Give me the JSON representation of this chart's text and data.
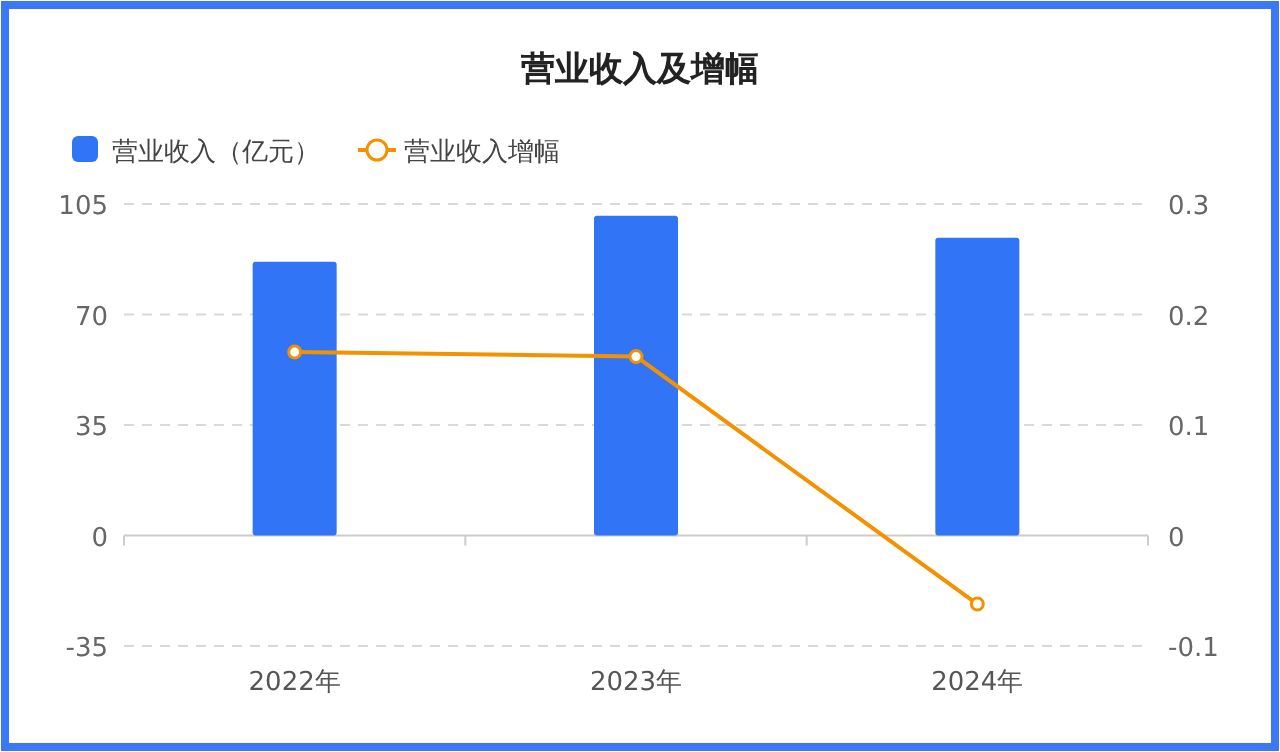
{
  "chart_data": {
    "type": "bar",
    "title": "营业收入及增幅",
    "categories": [
      "2022年",
      "2023年",
      "2024年"
    ],
    "series": [
      {
        "name": "营业收入（亿元）",
        "color": "#3274f6",
        "values": [
          86.7,
          101.3,
          94.3
        ]
      },
      {
        "name": "营业收入增幅",
        "type": "line",
        "axis": "y2",
        "color": "#f39200",
        "values": [
          0.166,
          0.162,
          -0.062
        ]
      }
    ],
    "ylim": [
      -35,
      105
    ],
    "yticks": [
      -35,
      0,
      35,
      70,
      105
    ],
    "y2lim": [
      -0.1,
      0.3
    ],
    "y2ticks": [
      -0.1,
      0,
      0.1,
      0.2,
      0.3
    ],
    "grid": "y",
    "legend": "top left",
    "marker": "circle",
    "line_style": "solid"
  }
}
